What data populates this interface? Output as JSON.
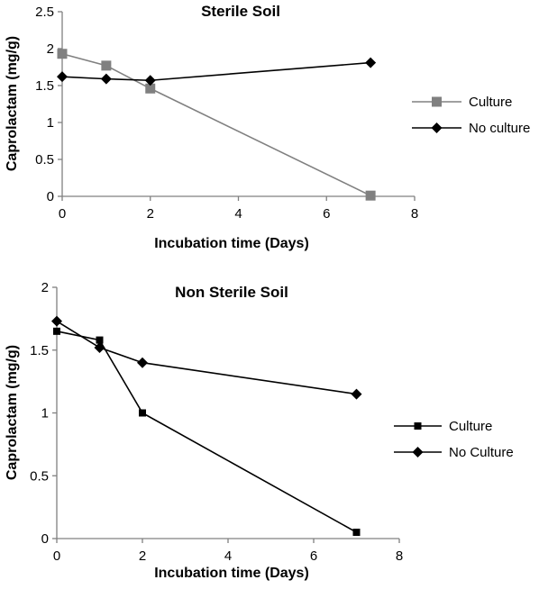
{
  "chart_data": [
    {
      "type": "line",
      "title": "Sterile Soil",
      "xlabel": "Incubation time (Days)",
      "ylabel": "Caprolactam (mg/g)",
      "xlim": [
        0,
        8
      ],
      "ylim": [
        0,
        2.5
      ],
      "xticks": [
        "0",
        "2",
        "4",
        "6",
        "8"
      ],
      "yticks": [
        "0",
        "0.5",
        "1",
        "1.5",
        "2",
        "2.5"
      ],
      "grid": false,
      "legend_position": "right",
      "series": [
        {
          "name": "Culture",
          "marker": "square",
          "color": "#808080",
          "x": [
            0,
            1,
            2,
            7
          ],
          "y": [
            1.93,
            1.77,
            1.46,
            0.01
          ]
        },
        {
          "name": "No culture",
          "marker": "diamond",
          "color": "#000000",
          "x": [
            0,
            1,
            2,
            7
          ],
          "y": [
            1.62,
            1.59,
            1.57,
            1.81
          ]
        }
      ]
    },
    {
      "type": "line",
      "title": "Non Sterile Soil",
      "xlabel": "Incubation time (Days)",
      "ylabel": "Caprolactam (mg/g)",
      "xlim": [
        0,
        8
      ],
      "ylim": [
        0,
        2
      ],
      "xticks": [
        "0",
        "2",
        "4",
        "6",
        "8"
      ],
      "yticks": [
        "0",
        "0.5",
        "1",
        "1.5",
        "2"
      ],
      "grid": false,
      "legend_position": "right",
      "series": [
        {
          "name": "Culture",
          "marker": "square",
          "color": "#000000",
          "x": [
            0,
            1,
            2,
            7
          ],
          "y": [
            1.65,
            1.58,
            1.0,
            0.05
          ]
        },
        {
          "name": "No Culture",
          "marker": "diamond",
          "color": "#000000",
          "x": [
            0,
            1,
            2,
            7
          ],
          "y": [
            1.73,
            1.52,
            1.4,
            1.15
          ]
        }
      ]
    }
  ]
}
